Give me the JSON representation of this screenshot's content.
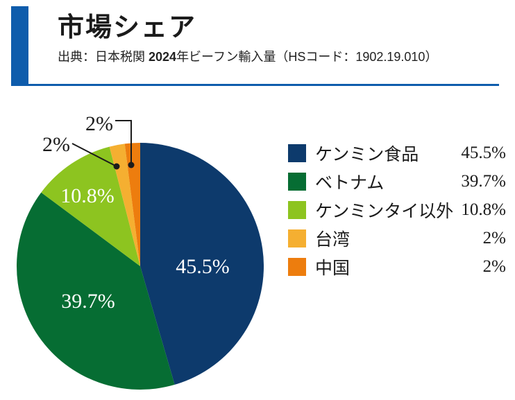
{
  "header": {
    "title": "市場シェア",
    "source_prefix": "出典：日本税関 ",
    "source_year": "2024",
    "source_suffix": "年ビーフン輸入量（HSコード：1902.19.010）"
  },
  "colors": {
    "accent_blue": "#0e5cac",
    "text": "#1b1b1b",
    "inside_label": "#ffffff"
  },
  "chart_data": {
    "type": "pie",
    "title": "市場シェア",
    "unit": "%",
    "start_angle_deg": 0,
    "direction": "clockwise",
    "legend_position": "right",
    "slices": [
      {
        "label": "ケンミン食品",
        "value": 45.5,
        "display": "45.5%",
        "color": "#0d3a6c",
        "label_placement": "inside"
      },
      {
        "label": "ベトナム",
        "value": 39.7,
        "display": "39.7%",
        "color": "#066d33",
        "label_placement": "inside"
      },
      {
        "label": "ケンミンタイ以外",
        "value": 10.8,
        "display": "10.8%",
        "color": "#8dc420",
        "label_placement": "inside"
      },
      {
        "label": "台湾",
        "value": 2,
        "display": "2%",
        "color": "#f5af31",
        "label_placement": "outside"
      },
      {
        "label": "中国",
        "value": 2,
        "display": "2%",
        "color": "#ed7d0e",
        "label_placement": "outside"
      }
    ]
  }
}
